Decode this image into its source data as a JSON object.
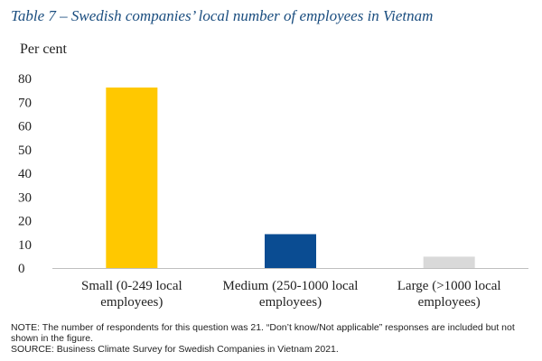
{
  "chart_data": {
    "type": "bar",
    "title": "Table 7 – Swedish companies’ local number of employees in Vietnam",
    "ylabel": "Per cent",
    "xlabel": "",
    "ylim": [
      0,
      80
    ],
    "yticks": [
      0,
      10,
      20,
      30,
      40,
      50,
      60,
      70,
      80
    ],
    "categories": [
      [
        "Small (0-249 local",
        "employees)"
      ],
      [
        "Medium (250-1000 local",
        "employees)"
      ],
      [
        "Large (>1000 local",
        "employees)"
      ]
    ],
    "values": [
      76.2,
      14.3,
      4.8
    ],
    "colors": [
      "#ffc800",
      "#0a4c92",
      "#d9d9d9"
    ],
    "grid": false,
    "legend": "none"
  },
  "notes": {
    "note": "NOTE: The number of respondents for this question was 21. “Don’t know/Not applicable” responses are included but not shown in the figure.",
    "source": "SOURCE: Business Climate Survey for Swedish Companies in Vietnam 2021."
  }
}
